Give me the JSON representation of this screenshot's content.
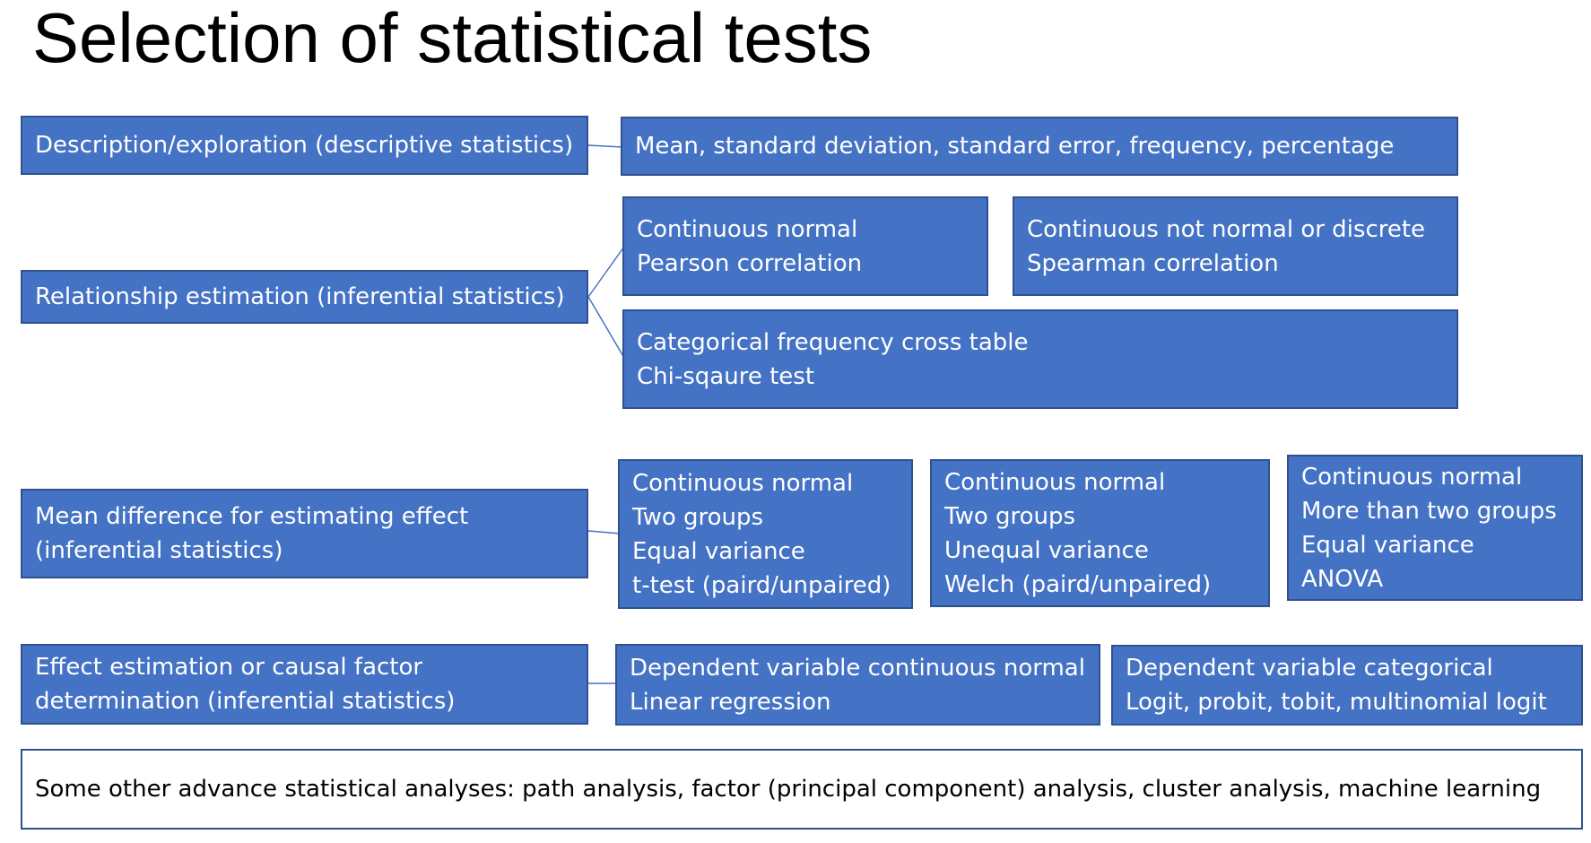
{
  "title": "Selection of statistical tests",
  "categories": {
    "description": "Description/exploration (descriptive statistics)",
    "relationship": "Relationship estimation (inferential statistics)",
    "mean_difference": [
      "Mean difference for estimating effect",
      "(inferential statistics)"
    ],
    "effect_estimation": [
      "Effect estimation or causal factor",
      "determination (inferential statistics)"
    ]
  },
  "tests": {
    "descriptive": "Mean, standard deviation, standard error, frequency, percentage",
    "pearson": [
      "Continuous normal",
      "Pearson correlation"
    ],
    "spearman": [
      "Continuous not normal or discrete",
      "Spearman correlation"
    ],
    "chi_square": [
      "Categorical frequency cross table",
      "Chi-sqaure test"
    ],
    "t_test": [
      "Continuous normal",
      "Two groups",
      "Equal variance",
      "t-test (paird/unpaired)"
    ],
    "welch": [
      "Continuous normal",
      "Two groups",
      "Unequal variance",
      "Welch (paird/unpaired)"
    ],
    "anova": [
      "Continuous normal",
      "More than two groups",
      "Equal variance",
      "ANOVA"
    ],
    "linear_regression": [
      "Dependent variable continuous normal",
      "Linear regression"
    ],
    "logit": [
      "Dependent variable categorical",
      "Logit, probit, tobit, multinomial logit"
    ]
  },
  "note": "Some other advance statistical analyses: path analysis, factor (principal component) analysis, cluster analysis, machine learning",
  "colors": {
    "box_fill": "#4472c4",
    "box_border": "#2f528f",
    "connector": "#4472c4"
  }
}
